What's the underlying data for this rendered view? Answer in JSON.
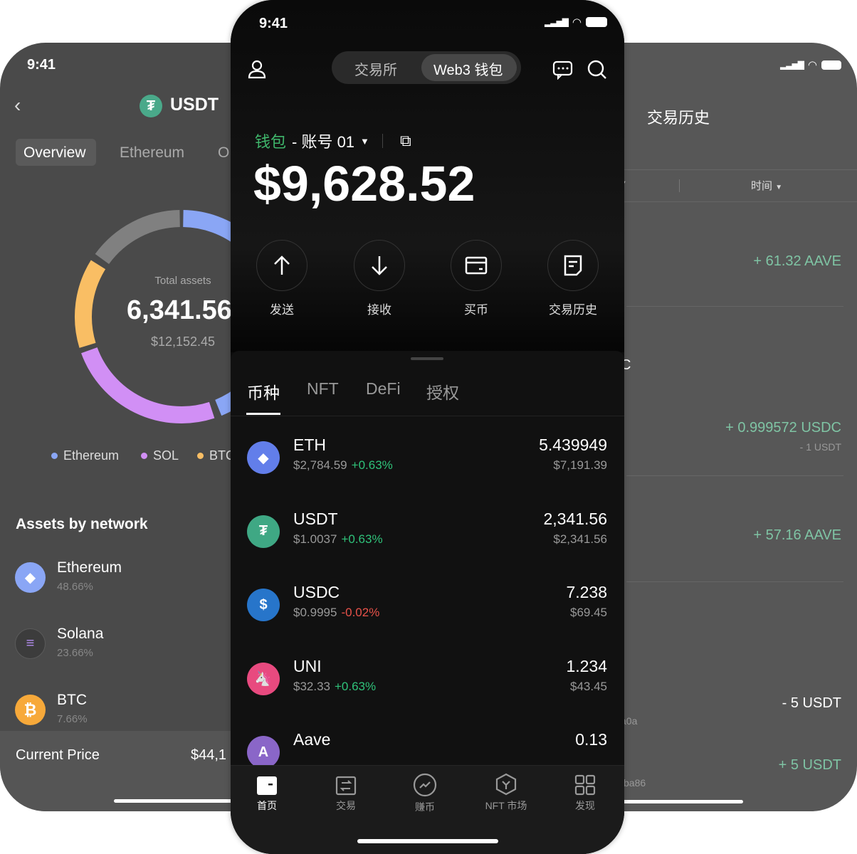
{
  "left_phone": {
    "status_time": "9:41",
    "title": "USDT",
    "tabs": [
      "Overview",
      "Ethereum",
      "O"
    ],
    "active_tab": 0,
    "donut": {
      "label": "Total assets",
      "amount": "6,341.56",
      "usd": "$12,152.45",
      "colors": {
        "ethereum": "#8aa6f5",
        "sol": "#d18ff5",
        "btc": "#f9be64",
        "other": "#808080"
      }
    },
    "legend": [
      {
        "label": "Ethereum",
        "color": "#8aa6f5"
      },
      {
        "label": "SOL",
        "color": "#d18ff5"
      },
      {
        "label": "BTC",
        "color": "#f9be64"
      }
    ],
    "section_title": "Assets by network",
    "networks": [
      {
        "name": "Ethereum",
        "pct": "48.66%",
        "icon": "ethereum-icon"
      },
      {
        "name": "Solana",
        "pct": "23.66%",
        "icon": "solana-icon"
      },
      {
        "name": "BTC",
        "pct": "7.66%",
        "icon": "bitcoin-icon"
      }
    ],
    "current_price_label": "Current Price",
    "current_price_value": "$44,1"
  },
  "middle_phone": {
    "status_time": "9:41",
    "segment": [
      "交易所",
      "Web3 钱包"
    ],
    "active_segment": 1,
    "wallet_label": "钱包",
    "account_label": "- 账号 01",
    "balance": "$9,628.52",
    "actions": [
      {
        "label": "发送",
        "icon": "arrow-up-icon"
      },
      {
        "label": "接收",
        "icon": "arrow-down-icon"
      },
      {
        "label": "买币",
        "icon": "card-icon"
      },
      {
        "label": "交易历史",
        "icon": "document-icon"
      }
    ],
    "asset_tabs": [
      "币种",
      "NFT",
      "DeFi",
      "授权"
    ],
    "active_asset_tab": 0,
    "tokens": [
      {
        "symbol": "ETH",
        "price": "$2,784.59",
        "change": "+0.63%",
        "dir": "up",
        "balance": "5.439949",
        "value": "$7,191.39",
        "color": "#627eea"
      },
      {
        "symbol": "USDT",
        "price": "$1.0037",
        "change": "+0.63%",
        "dir": "up",
        "balance": "2,341.56",
        "value": "$2,341.56",
        "color": "#3fa884"
      },
      {
        "symbol": "USDC",
        "price": "$0.9995",
        "change": "-0.02%",
        "dir": "down",
        "balance": "7.238",
        "value": "$69.45",
        "color": "#2775ca"
      },
      {
        "symbol": "UNI",
        "price": "$32.33",
        "change": "+0.63%",
        "dir": "up",
        "balance": "1.234",
        "value": "$43.45",
        "color": "#e84a7f"
      },
      {
        "symbol": "Aave",
        "price": "",
        "change": "",
        "dir": "up",
        "balance": "0.13",
        "value": "",
        "color": "#8a66c8"
      }
    ],
    "bottom_nav": [
      {
        "label": "首页",
        "icon": "home-icon",
        "active": true
      },
      {
        "label": "交易",
        "icon": "trade-icon",
        "active": false
      },
      {
        "label": "赚币",
        "icon": "earn-icon",
        "active": false
      },
      {
        "label": "NFT 市场",
        "icon": "nft-market-icon",
        "active": false
      },
      {
        "label": "发现",
        "icon": "discover-grid-icon",
        "active": false
      }
    ]
  },
  "right_phone": {
    "title": "交易历史",
    "filter_time": "时间",
    "transactions": [
      {
        "amount": "+ 61.32 AAVE",
        "sub": "",
        "color": "#7fc4a4"
      },
      {
        "amount": "+ 0.999572 USDC",
        "sub": "- 1 USDT",
        "color": "#7fc4a4"
      },
      {
        "amount": "+ 57.16 AAVE",
        "sub": "",
        "color": "#7fc4a4"
      },
      {
        "amount": "- 5 USDT",
        "sub": "",
        "color": "#ffffff"
      },
      {
        "amount": "+ 5 USDT",
        "sub": "",
        "color": "#7fc4a4"
      }
    ],
    "fragments": [
      "C",
      "a0a",
      "ba86"
    ]
  }
}
